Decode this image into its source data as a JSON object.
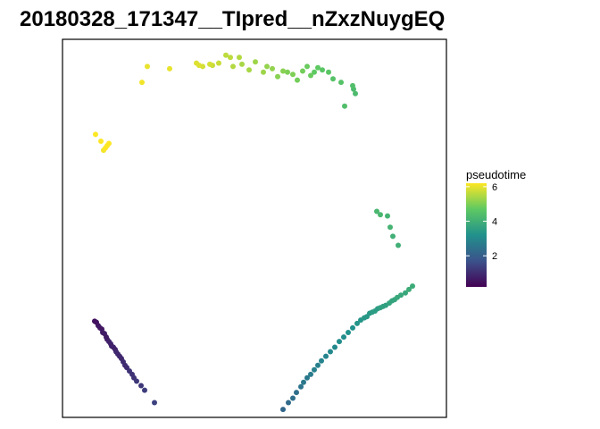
{
  "chart_data": {
    "type": "scatter",
    "title": "20180328_171347__TIpred__nZxzNuygEQ",
    "xlabel": "",
    "ylabel": "",
    "xlim": [
      0,
      430
    ],
    "ylim": [
      0,
      334
    ],
    "grid": false,
    "axis_ticks_visible": false,
    "legend": {
      "title": "pseudotime",
      "placement": "right",
      "type": "colorbar",
      "range": [
        0.2,
        6.2
      ],
      "ticks": [
        2,
        4,
        6
      ],
      "tick_labels": [
        "2",
        "4",
        "6"
      ],
      "palette": [
        "#440154",
        "#3b528b",
        "#21918c",
        "#5ec962",
        "#fde725"
      ]
    },
    "point_color": "viridis mapped from pseudotime",
    "points": [
      {
        "x": 36,
        "y": 85,
        "t": 0.5
      },
      {
        "x": 38,
        "y": 84,
        "t": 0.5
      },
      {
        "x": 40,
        "y": 81,
        "t": 0.6
      },
      {
        "x": 42,
        "y": 79,
        "t": 0.6
      },
      {
        "x": 44,
        "y": 78,
        "t": 0.6
      },
      {
        "x": 45,
        "y": 75,
        "t": 0.7
      },
      {
        "x": 47,
        "y": 74,
        "t": 0.7
      },
      {
        "x": 49,
        "y": 71,
        "t": 0.7
      },
      {
        "x": 50,
        "y": 69,
        "t": 0.7
      },
      {
        "x": 52,
        "y": 67,
        "t": 0.8
      },
      {
        "x": 54,
        "y": 65,
        "t": 0.8
      },
      {
        "x": 55,
        "y": 63,
        "t": 0.8
      },
      {
        "x": 57,
        "y": 62,
        "t": 0.8
      },
      {
        "x": 59,
        "y": 60,
        "t": 0.8
      },
      {
        "x": 60,
        "y": 58,
        "t": 0.9
      },
      {
        "x": 62,
        "y": 56,
        "t": 0.9
      },
      {
        "x": 64,
        "y": 54,
        "t": 0.9
      },
      {
        "x": 66,
        "y": 52,
        "t": 0.9
      },
      {
        "x": 68,
        "y": 49,
        "t": 1.0
      },
      {
        "x": 70,
        "y": 46,
        "t": 1.0
      },
      {
        "x": 72,
        "y": 44,
        "t": 1.0
      },
      {
        "x": 75,
        "y": 41,
        "t": 1.1
      },
      {
        "x": 78,
        "y": 38,
        "t": 1.1
      },
      {
        "x": 80,
        "y": 35,
        "t": 1.1
      },
      {
        "x": 83,
        "y": 32,
        "t": 1.2
      },
      {
        "x": 88,
        "y": 28,
        "t": 1.2
      },
      {
        "x": 92,
        "y": 24,
        "t": 1.3
      },
      {
        "x": 103,
        "y": 13,
        "t": 1.4
      },
      {
        "x": 247,
        "y": 7,
        "t": 2.2
      },
      {
        "x": 253,
        "y": 13,
        "t": 2.3
      },
      {
        "x": 258,
        "y": 17,
        "t": 2.4
      },
      {
        "x": 262,
        "y": 22,
        "t": 2.4
      },
      {
        "x": 267,
        "y": 27,
        "t": 2.5
      },
      {
        "x": 270,
        "y": 31,
        "t": 2.6
      },
      {
        "x": 274,
        "y": 35,
        "t": 2.6
      },
      {
        "x": 278,
        "y": 38,
        "t": 2.7
      },
      {
        "x": 282,
        "y": 42,
        "t": 2.8
      },
      {
        "x": 286,
        "y": 46,
        "t": 2.8
      },
      {
        "x": 290,
        "y": 50,
        "t": 2.9
      },
      {
        "x": 295,
        "y": 54,
        "t": 2.9
      },
      {
        "x": 300,
        "y": 58,
        "t": 3.0
      },
      {
        "x": 305,
        "y": 62,
        "t": 3.0
      },
      {
        "x": 310,
        "y": 67,
        "t": 3.1
      },
      {
        "x": 315,
        "y": 71,
        "t": 3.1
      },
      {
        "x": 320,
        "y": 75,
        "t": 3.2
      },
      {
        "x": 325,
        "y": 79,
        "t": 3.2
      },
      {
        "x": 330,
        "y": 83,
        "t": 3.3
      },
      {
        "x": 334,
        "y": 86,
        "t": 3.3
      },
      {
        "x": 338,
        "y": 88,
        "t": 3.4
      },
      {
        "x": 341,
        "y": 89,
        "t": 3.4
      },
      {
        "x": 344,
        "y": 92,
        "t": 3.4
      },
      {
        "x": 347,
        "y": 93,
        "t": 3.5
      },
      {
        "x": 350,
        "y": 94,
        "t": 3.5
      },
      {
        "x": 353,
        "y": 96,
        "t": 3.5
      },
      {
        "x": 356,
        "y": 97,
        "t": 3.6
      },
      {
        "x": 359,
        "y": 98,
        "t": 3.6
      },
      {
        "x": 362,
        "y": 99,
        "t": 3.6
      },
      {
        "x": 366,
        "y": 101,
        "t": 3.7
      },
      {
        "x": 369,
        "y": 103,
        "t": 3.7
      },
      {
        "x": 372,
        "y": 104,
        "t": 3.7
      },
      {
        "x": 375,
        "y": 106,
        "t": 3.8
      },
      {
        "x": 379,
        "y": 108,
        "t": 3.8
      },
      {
        "x": 384,
        "y": 110,
        "t": 3.8
      },
      {
        "x": 388,
        "y": 113,
        "t": 3.9
      },
      {
        "x": 392,
        "y": 116,
        "t": 3.9
      },
      {
        "x": 376,
        "y": 152,
        "t": 4.0
      },
      {
        "x": 370,
        "y": 160,
        "t": 4.0
      },
      {
        "x": 367,
        "y": 168,
        "t": 4.1
      },
      {
        "x": 364,
        "y": 178,
        "t": 4.1
      },
      {
        "x": 356,
        "y": 179,
        "t": 4.2
      },
      {
        "x": 352,
        "y": 182,
        "t": 4.2
      },
      {
        "x": 328,
        "y": 286,
        "t": 4.3
      },
      {
        "x": 326,
        "y": 290,
        "t": 4.3
      },
      {
        "x": 325,
        "y": 293,
        "t": 4.4
      },
      {
        "x": 316,
        "y": 275,
        "t": 4.4
      },
      {
        "x": 312,
        "y": 296,
        "t": 4.5
      },
      {
        "x": 303,
        "y": 299,
        "t": 4.5
      },
      {
        "x": 298,
        "y": 305,
        "t": 4.6
      },
      {
        "x": 291,
        "y": 307,
        "t": 4.6
      },
      {
        "x": 286,
        "y": 309,
        "t": 4.7
      },
      {
        "x": 282,
        "y": 305,
        "t": 4.7
      },
      {
        "x": 278,
        "y": 302,
        "t": 4.8
      },
      {
        "x": 274,
        "y": 310,
        "t": 4.8
      },
      {
        "x": 269,
        "y": 306,
        "t": 4.9
      },
      {
        "x": 263,
        "y": 298,
        "t": 4.9
      },
      {
        "x": 258,
        "y": 303,
        "t": 5.0
      },
      {
        "x": 252,
        "y": 305,
        "t": 5.0
      },
      {
        "x": 247,
        "y": 306,
        "t": 5.1
      },
      {
        "x": 241,
        "y": 301,
        "t": 5.1
      },
      {
        "x": 235,
        "y": 308,
        "t": 5.2
      },
      {
        "x": 229,
        "y": 310,
        "t": 5.2
      },
      {
        "x": 225,
        "y": 305,
        "t": 5.3
      },
      {
        "x": 216,
        "y": 314,
        "t": 5.3
      },
      {
        "x": 209,
        "y": 307,
        "t": 5.4
      },
      {
        "x": 201,
        "y": 312,
        "t": 5.4
      },
      {
        "x": 198,
        "y": 318,
        "t": 5.5
      },
      {
        "x": 191,
        "y": 310,
        "t": 5.5
      },
      {
        "x": 188,
        "y": 318,
        "t": 5.6
      },
      {
        "x": 183,
        "y": 320,
        "t": 5.6
      },
      {
        "x": 175,
        "y": 313,
        "t": 5.7
      },
      {
        "x": 168,
        "y": 311,
        "t": 5.7
      },
      {
        "x": 165,
        "y": 312,
        "t": 5.8
      },
      {
        "x": 157,
        "y": 310,
        "t": 5.8
      },
      {
        "x": 153,
        "y": 311,
        "t": 5.9
      },
      {
        "x": 150,
        "y": 313,
        "t": 5.9
      },
      {
        "x": 120,
        "y": 308,
        "t": 6.0
      },
      {
        "x": 95,
        "y": 310,
        "t": 6.0
      },
      {
        "x": 89,
        "y": 296,
        "t": 6.1
      },
      {
        "x": 46,
        "y": 236,
        "t": 6.1
      },
      {
        "x": 48,
        "y": 238,
        "t": 6.2
      },
      {
        "x": 50,
        "y": 240,
        "t": 6.2
      },
      {
        "x": 52,
        "y": 242,
        "t": 6.2
      },
      {
        "x": 43,
        "y": 244,
        "t": 6.2
      },
      {
        "x": 37,
        "y": 250,
        "t": 6.2
      }
    ]
  }
}
